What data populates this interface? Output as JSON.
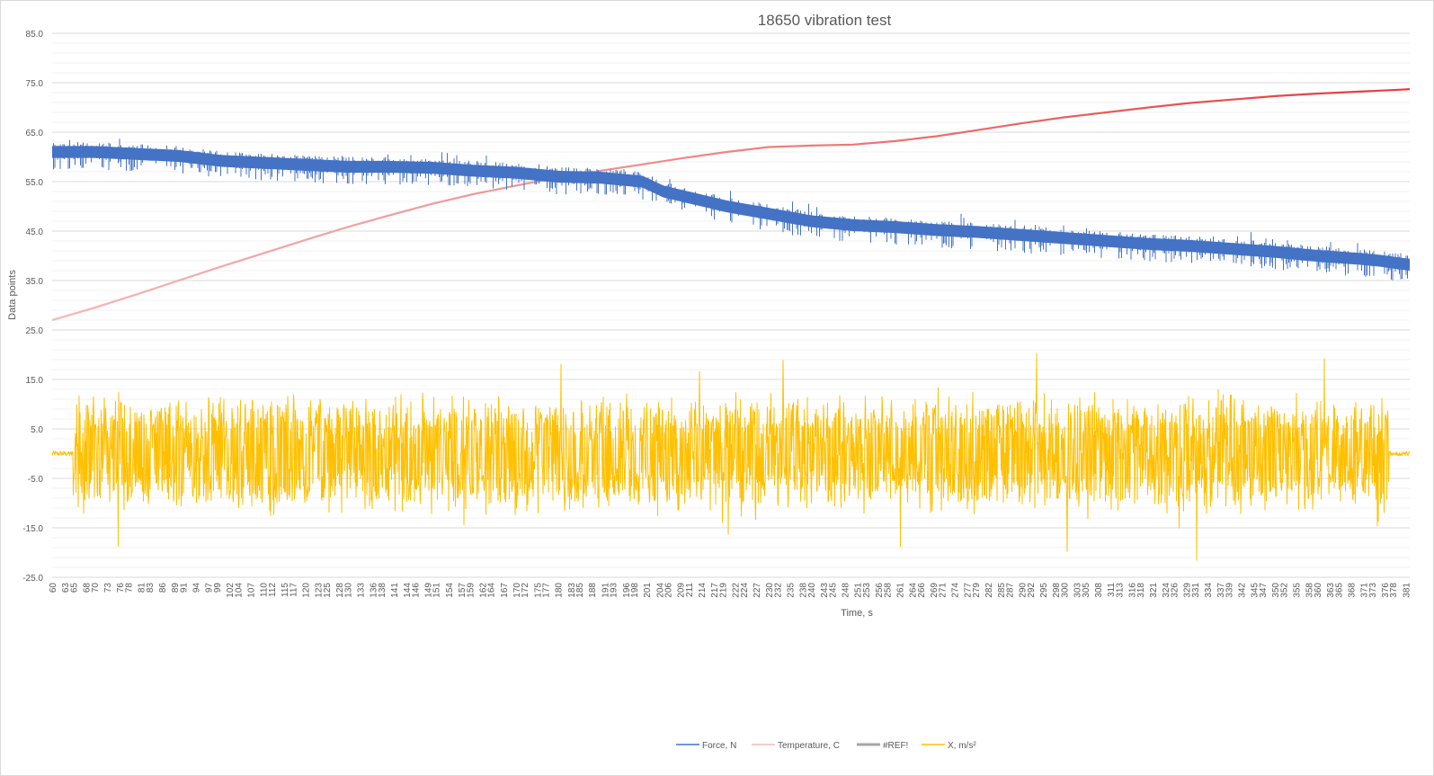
{
  "chart_data": {
    "type": "line",
    "title": "18650 vibration test",
    "xlabel": "Time, s",
    "ylabel": "Data points",
    "ylim": [
      -25,
      85
    ],
    "y_ticks": [
      "85.0",
      "75.0",
      "65.0",
      "55.0",
      "45.0",
      "35.0",
      "25.0",
      "15.0",
      "5.0",
      "-5.0",
      "-15.0",
      "-25.0"
    ],
    "x_ticks": [
      "60",
      "63",
      "65",
      "68",
      "70",
      "73",
      "76",
      "78",
      "81",
      "83",
      "86",
      "89",
      "91",
      "94",
      "97",
      "99",
      "102",
      "104",
      "107",
      "110",
      "112",
      "115",
      "117",
      "120",
      "123",
      "125",
      "128",
      "130",
      "133",
      "136",
      "138",
      "141",
      "144",
      "146",
      "149",
      "151",
      "154",
      "157",
      "159",
      "162",
      "164",
      "167",
      "170",
      "172",
      "175",
      "177",
      "180",
      "183",
      "185",
      "188",
      "191",
      "193",
      "196",
      "198",
      "201",
      "204",
      "206",
      "209",
      "211",
      "214",
      "217",
      "219",
      "222",
      "224",
      "227",
      "230",
      "232",
      "235",
      "238",
      "240",
      "243",
      "245",
      "248",
      "251",
      "253",
      "256",
      "258",
      "261",
      "264",
      "266",
      "269",
      "271",
      "274",
      "277",
      "279",
      "282",
      "285",
      "287",
      "290",
      "292",
      "295",
      "298",
      "300",
      "303",
      "305",
      "308",
      "311",
      "313",
      "316",
      "318",
      "321",
      "324",
      "326",
      "329",
      "331",
      "334",
      "337",
      "339",
      "342",
      "345",
      "347",
      "350",
      "352",
      "355",
      "358",
      "360",
      "363",
      "365",
      "368",
      "371",
      "373",
      "376",
      "378",
      "381"
    ],
    "grid": true,
    "minor_grid": true,
    "legend_position": "bottom",
    "series": [
      {
        "name": "Force, N",
        "color": "#4472c4",
        "x": [
          60,
          70,
          80,
          90,
          100,
          110,
          120,
          130,
          140,
          150,
          160,
          170,
          180,
          190,
          195,
          200,
          205,
          210,
          215,
          220,
          230,
          240,
          250,
          260,
          270,
          280,
          290,
          300,
          310,
          320,
          330,
          340,
          350,
          360,
          370,
          375,
          380,
          382
        ],
        "y": [
          61.0,
          61.0,
          60.6,
          60.2,
          59.2,
          58.8,
          58.4,
          58.0,
          58.0,
          57.8,
          57.2,
          56.8,
          56.0,
          55.8,
          55.4,
          55.0,
          53.0,
          52.0,
          51.0,
          50.0,
          48.5,
          47.0,
          46.2,
          45.8,
          45.2,
          44.8,
          44.2,
          43.6,
          43.0,
          42.4,
          42.0,
          41.4,
          40.8,
          40.0,
          39.4,
          39.0,
          38.4,
          38.2
        ]
      },
      {
        "name": "Temperature, C",
        "color": "#e63a3a",
        "x": [
          60,
          70,
          80,
          90,
          100,
          110,
          120,
          130,
          140,
          150,
          160,
          170,
          180,
          190,
          200,
          210,
          220,
          230,
          240,
          250,
          260,
          270,
          280,
          290,
          300,
          310,
          320,
          330,
          340,
          350,
          360,
          370,
          380,
          382
        ],
        "y": [
          27.0,
          29.5,
          32.2,
          35.0,
          37.8,
          40.5,
          43.2,
          45.8,
          48.2,
          50.5,
          52.5,
          54.2,
          55.8,
          57.2,
          58.5,
          59.8,
          61.0,
          62.0,
          62.3,
          62.5,
          63.2,
          64.2,
          65.5,
          66.8,
          68.0,
          69.0,
          70.0,
          70.9,
          71.6,
          72.3,
          72.8,
          73.2,
          73.6,
          73.7
        ]
      },
      {
        "name": "#REF!",
        "color": "#a5a5a5",
        "x": [],
        "y": []
      },
      {
        "name": "X, m/s²",
        "color": "#ffc000",
        "x_range": [
          60,
          382
        ],
        "active_range": [
          65,
          377
        ],
        "center": 0.0,
        "typical_amplitude": 10.0,
        "peak_max": 22.5,
        "peak_min": -24.0
      }
    ]
  }
}
